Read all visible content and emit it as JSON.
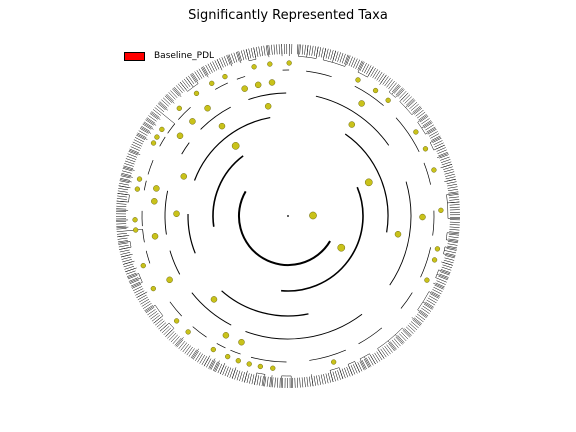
{
  "title": "Significantly Represented Taxa",
  "legend": {
    "label": "Baseline_PDL",
    "color": "#ff0000"
  },
  "colors": {
    "node": "#c9c21a",
    "node_stroke": "#6d6a10",
    "edge": "#000000"
  },
  "tree": {
    "type": "circular-cladogram",
    "levels": 7,
    "leaf_count": 420
  }
}
